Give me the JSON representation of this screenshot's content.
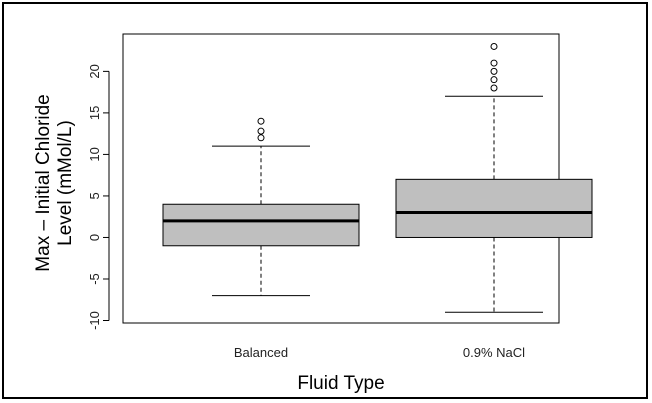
{
  "chart_data": {
    "type": "box",
    "title": "",
    "xlabel": "Fluid Type",
    "ylabel_line1": "Max – Initial Chloride",
    "ylabel_line2": "Level (mMol/L)",
    "ylim": [
      -10.3,
      24.5
    ],
    "yticks": [
      -10,
      -5,
      0,
      5,
      10,
      15,
      20
    ],
    "ytick_labels": [
      "-10",
      "-5",
      "0",
      "5",
      "10",
      "15",
      "20"
    ],
    "grid": false,
    "box_color": "#bfbfbf",
    "categories": [
      "Balanced",
      "0.9% NaCl"
    ],
    "boxes": [
      {
        "category": "Balanced",
        "whisker_low": -7,
        "q1": -1,
        "median": 2,
        "q3": 4,
        "whisker_high": 11,
        "outliers": [
          12,
          12.8,
          14
        ]
      },
      {
        "category": "0.9% NaCl",
        "whisker_low": -9,
        "q1": 0,
        "median": 3,
        "q3": 7,
        "whisker_high": 17,
        "outliers": [
          18,
          19,
          20,
          21,
          23
        ]
      }
    ]
  }
}
